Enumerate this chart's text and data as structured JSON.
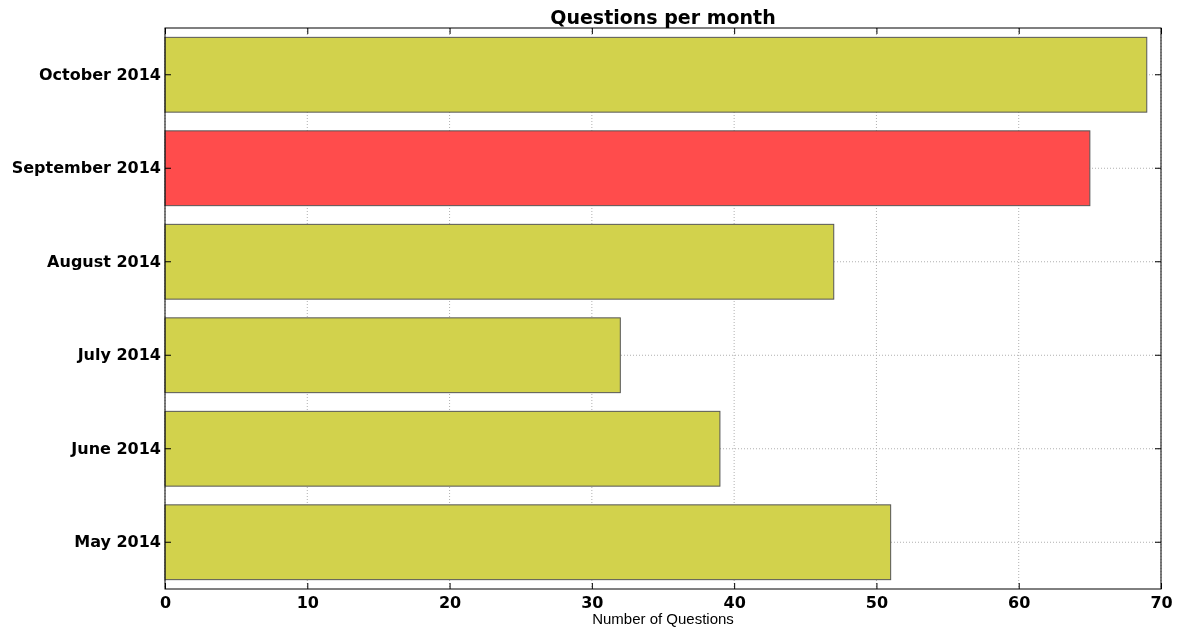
{
  "chart_data": {
    "type": "bar",
    "orientation": "horizontal",
    "title": "Questions per month",
    "xlabel": "Number of Questions",
    "categories": [
      "October 2014",
      "September 2014",
      "August 2014",
      "July 2014",
      "June 2014",
      "May 2014"
    ],
    "values": [
      69,
      65,
      47,
      32,
      39,
      51
    ],
    "colors": [
      "#d2d24c",
      "#ff4c4c",
      "#d2d24c",
      "#d2d24c",
      "#d2d24c",
      "#d2d24c"
    ],
    "xlim": [
      0,
      70
    ],
    "xticks": [
      0,
      10,
      20,
      30,
      40,
      50,
      60,
      70
    ],
    "grid": true
  }
}
